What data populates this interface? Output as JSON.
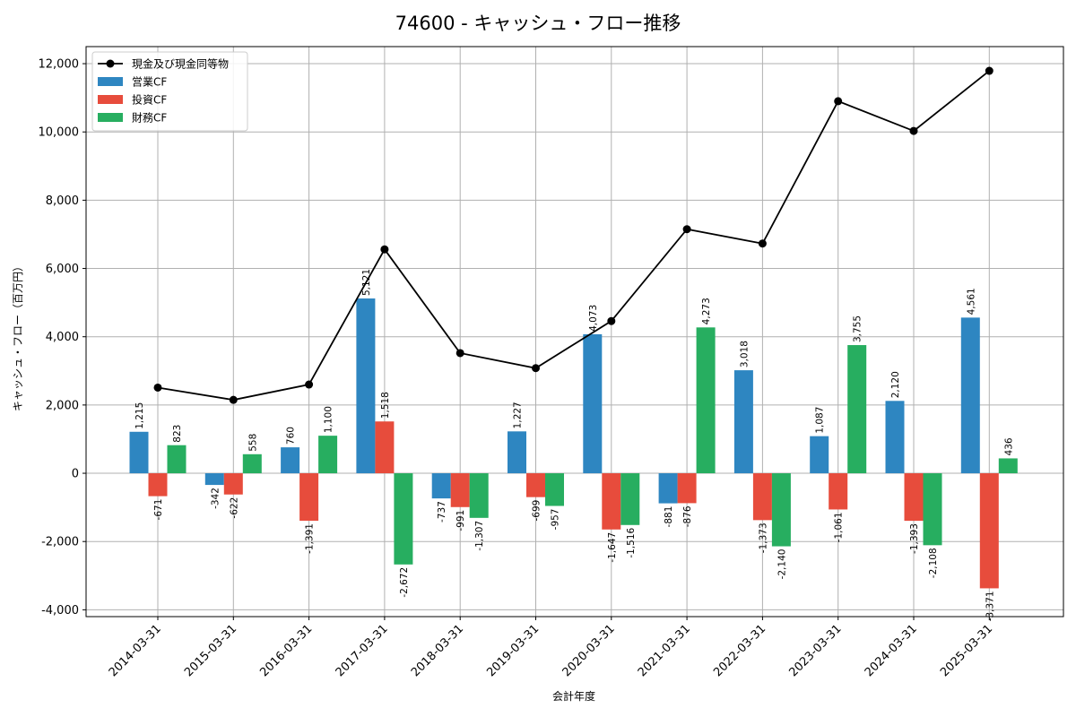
{
  "chart_data": {
    "type": "bar",
    "title": "74600 - キャッシュ・フロー推移",
    "xlabel": "会計年度",
    "ylabel": "キャッシュ・フロー（百万円）",
    "ylim": [
      -4200,
      12500
    ],
    "yticks": [
      -4000,
      -2000,
      0,
      2000,
      4000,
      6000,
      8000,
      10000,
      12000
    ],
    "ytick_labels": [
      "-4,000",
      "-2,000",
      "0",
      "2,000",
      "4,000",
      "6,000",
      "8,000",
      "10,000",
      "12,000"
    ],
    "grid": true,
    "legend_position": "top-left",
    "categories": [
      "2014-03-31",
      "2015-03-31",
      "2016-03-31",
      "2017-03-31",
      "2018-03-31",
      "2019-03-31",
      "2020-03-31",
      "2021-03-31",
      "2022-03-31",
      "2023-03-31",
      "2024-03-31",
      "2025-03-31"
    ],
    "series": [
      {
        "name": "営業CF",
        "type": "bar",
        "color": "#2e86c1",
        "values": [
          1215,
          -342,
          760,
          5121,
          -737,
          1227,
          4073,
          -881,
          3018,
          1087,
          2120,
          4561
        ],
        "labels": [
          "1,215",
          "-342",
          "760",
          "5,121",
          "-737",
          "1,227",
          "4,073",
          "-881",
          "3,018",
          "1,087",
          "2,120",
          "4,561"
        ]
      },
      {
        "name": "投資CF",
        "type": "bar",
        "color": "#e74c3c",
        "values": [
          -671,
          -622,
          -1391,
          1518,
          -991,
          -699,
          -1647,
          -876,
          -1373,
          -1061,
          -1393,
          -3371
        ],
        "labels": [
          "-671",
          "-622",
          "-1,391",
          "1,518",
          "-991",
          "-699",
          "-1,647",
          "-876",
          "-1,373",
          "-1,061",
          "-1,393",
          "-3,371"
        ]
      },
      {
        "name": "財務CF",
        "type": "bar",
        "color": "#27ae60",
        "values": [
          823,
          558,
          1100,
          -2672,
          -1307,
          -957,
          -1516,
          4273,
          -2140,
          3755,
          -2108,
          436
        ],
        "labels": [
          "823",
          "558",
          "1,100",
          "-2,672",
          "-1,307",
          "-957",
          "-1,516",
          "4,273",
          "-2,140",
          "3,755",
          "-2,108",
          "436"
        ]
      },
      {
        "name": "現金及び現金同等物",
        "type": "line",
        "color": "#000000",
        "values": [
          2510,
          2150,
          2600,
          6560,
          3520,
          3080,
          4460,
          7150,
          6730,
          10900,
          10030,
          11790
        ]
      }
    ]
  }
}
